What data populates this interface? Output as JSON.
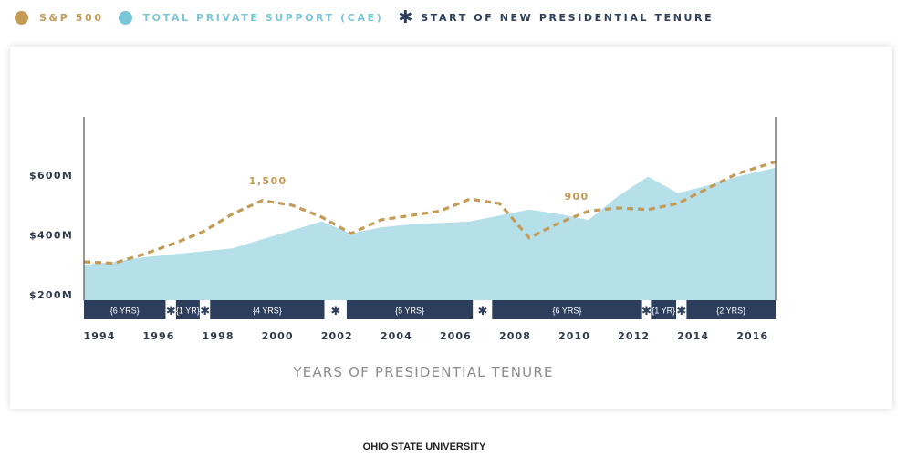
{
  "legend": {
    "sp500": "S&P 500",
    "support": "TOTAL PRIVATE SUPPORT (CAE)",
    "tenure": "START OF NEW PRESIDENTIAL TENURE"
  },
  "footer": "OHIO STATE UNIVERSITY",
  "colors": {
    "sp500": "#c49a57",
    "support": "#b5dfe9",
    "support_dot": "#7cc6da",
    "tenure_bar": "#2c3e5c",
    "axis_text": "#2e3a4b",
    "xlabel": "#8c8c8c"
  },
  "chart_data": {
    "type": "area",
    "xlabel": "YEARS OF PRESIDENTIAL TENURE",
    "ylabel": "",
    "x_ticks": [
      "1994",
      "1996",
      "1998",
      "2000",
      "2002",
      "2004",
      "2006",
      "2008",
      "2010",
      "2012",
      "2014",
      "2016"
    ],
    "y_ticks": [
      {
        "value": 200,
        "label": "$200M"
      },
      {
        "value": 400,
        "label": "$400M"
      },
      {
        "value": 600,
        "label": "$600M"
      }
    ],
    "xlim": [
      1994,
      2017.3
    ],
    "ylim": [
      200,
      800
    ],
    "series": [
      {
        "name": "TOTAL PRIVATE SUPPORT (CAE)",
        "kind": "area",
        "x": [
          1994,
          1995,
          1996,
          1997,
          1998,
          1999,
          2000,
          2001,
          2002,
          2003,
          2004,
          2005,
          2006,
          2007,
          2008,
          2009,
          2010,
          2011,
          2012,
          2013,
          2014,
          2015,
          2016,
          2017.3
        ],
        "y": [
          300,
          310,
          325,
          335,
          345,
          355,
          385,
          415,
          445,
          405,
          425,
          435,
          440,
          445,
          465,
          485,
          470,
          450,
          530,
          595,
          540,
          565,
          595,
          625
        ]
      },
      {
        "name": "S&P 500",
        "kind": "dashed-line",
        "x": [
          1994,
          1995,
          1996,
          1997,
          1998,
          1999,
          2000,
          2001,
          2002,
          2003,
          2004,
          2005,
          2006,
          2007,
          2008,
          2009,
          2010,
          2011,
          2012,
          2013,
          2014,
          2015,
          2016,
          2017.3
        ],
        "y": [
          310,
          305,
          335,
          370,
          410,
          470,
          515,
          500,
          460,
          405,
          450,
          465,
          480,
          520,
          505,
          390,
          440,
          480,
          490,
          485,
          505,
          555,
          605,
          645
        ]
      }
    ],
    "annotations": [
      {
        "text": "1,500",
        "x": 2000.2,
        "y": 570
      },
      {
        "text": "900",
        "x": 2010.6,
        "y": 518
      }
    ],
    "tenures": [
      {
        "label": "{6 YRS}",
        "start": 1994,
        "end": 1996.75
      },
      {
        "label": "{1 YR}",
        "start": 1997.1,
        "end": 1997.9
      },
      {
        "label": "{4 YRS}",
        "start": 1998.25,
        "end": 2002.1
      },
      {
        "label": "{5 YRS}",
        "start": 2002.85,
        "end": 2007.1
      },
      {
        "label": "{6 YRS}",
        "start": 2007.75,
        "end": 2012.8
      },
      {
        "label": "{1 YR}",
        "start": 2013.1,
        "end": 2013.95
      },
      {
        "label": "{2 YRS}",
        "start": 2014.3,
        "end": 2017.3
      }
    ],
    "tenure_starts": [
      1996.93,
      1998.08,
      2002.48,
      2007.43,
      2012.95,
      2014.13
    ]
  }
}
